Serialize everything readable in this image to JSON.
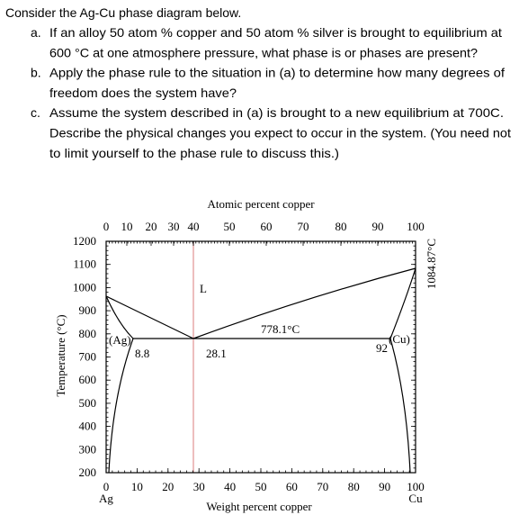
{
  "question": {
    "intro": "Consider the Ag-Cu phase diagram below.",
    "items": [
      {
        "marker": "a.",
        "lines": [
          "If an alloy 50 atom % copper and 50 atom % silver is brought to equilibrium at",
          "600 °C at one atmosphere pressure, what phase is or phases are present?"
        ]
      },
      {
        "marker": "b.",
        "lines": [
          "Apply the phase rule to the situation in (a) to determine how many degrees of",
          "freedom does the system have?"
        ]
      },
      {
        "marker": "c.",
        "lines": [
          "Assume the system described in (a) is brought to a new equilibrium at 700C.",
          "Describe the physical changes you expect to occur in the system. (You need not",
          "to limit yourself to the phase rule to discuss this.)"
        ]
      }
    ]
  },
  "diagram": {
    "top_axis_title": "Atomic percent copper",
    "top_ticks": [
      0,
      10,
      20,
      30,
      40,
      50,
      60,
      70,
      80,
      90,
      100
    ],
    "bottom_axis_title": "Weight percent copper",
    "bottom_ticks": [
      0,
      10,
      20,
      30,
      40,
      50,
      60,
      70,
      80,
      90,
      100
    ],
    "left_end_label": "Ag",
    "right_end_label": "Cu",
    "y_axis_title": "Temperature (°C)",
    "y_ticks": [
      1200,
      1100,
      1000,
      900,
      800,
      700,
      600,
      500,
      400,
      300,
      200
    ],
    "labels": [
      "L",
      "778.1°C",
      "(Ag)",
      "8.8",
      "28.1",
      "92",
      "(Cu)",
      "1084.87°C"
    ]
  }
}
